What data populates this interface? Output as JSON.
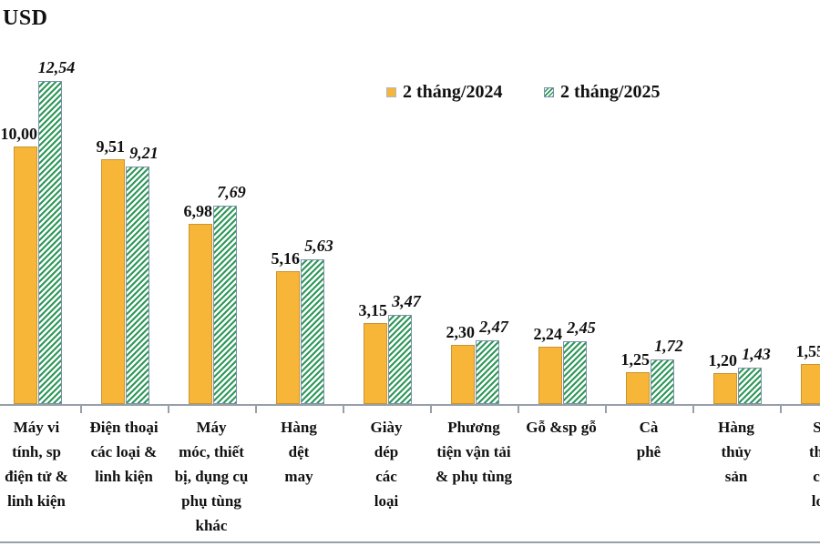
{
  "title": "USD",
  "legend": {
    "items": [
      {
        "label": "2 tháng/2024",
        "swatch": "solid-orange-square"
      },
      {
        "label": "2 tháng/2025",
        "swatch": "green-hatched-square"
      }
    ]
  },
  "colors": {
    "bar_2024_fill": "#F7B637",
    "bar_2024_border": "#C89433",
    "bar_2025_stripe": "#2E9858",
    "bar_2025_border": "#7D90AE",
    "axis": "#97A0A8",
    "text": "#111111",
    "background": "#FFFFFF"
  },
  "chart_data": {
    "type": "bar",
    "title": "USD",
    "ylabel": "USD",
    "xlabel": "",
    "ylim": [
      0,
      14
    ],
    "grid": false,
    "legend_position": "top-center",
    "categories": [
      "Máy vi tính, sp điện tử & linh kiện",
      "Điện thoại các loại & linh kiện",
      "Máy móc, thiết bị, dụng cụ phụ tùng khác",
      "Hàng dệt may",
      "Giày dép các loại",
      "Phương tiện vận tải & phụ tùng",
      "Gỗ &sp gỗ",
      "Cà phê",
      "Hàng thủy sản",
      "Sắt thép các loại"
    ],
    "category_lines": [
      [
        "Máy vi",
        "tính, sp",
        "điện tử &",
        "linh kiện"
      ],
      [
        "Điện thoại",
        "các loại &",
        "linh kiện"
      ],
      [
        "Máy",
        "móc, thiết",
        "bị, dụng cụ",
        "phụ tùng",
        "khác"
      ],
      [
        "Hàng",
        "dệt",
        "may"
      ],
      [
        "Giày",
        "dép",
        "các",
        "loại"
      ],
      [
        "Phương",
        "tiện vận tải",
        "& phụ tùng"
      ],
      [
        "Gỗ &sp gỗ"
      ],
      [
        "Cà",
        "phê"
      ],
      [
        "Hàng",
        "thủy",
        "sản"
      ],
      [
        "Sắt",
        "thép",
        "các",
        "loại"
      ]
    ],
    "series": [
      {
        "name": "2 tháng/2024",
        "values": [
          10.0,
          9.51,
          6.98,
          5.16,
          3.15,
          2.3,
          2.24,
          1.25,
          1.2,
          1.55
        ],
        "display": [
          "10,00",
          "9,51",
          "6,98",
          "5,16",
          "3,15",
          "2,30",
          "2,24",
          "1,25",
          "1,20",
          "1,55"
        ]
      },
      {
        "name": "2 tháng/2025",
        "values": [
          12.54,
          9.21,
          7.69,
          5.63,
          3.47,
          2.47,
          2.45,
          1.72,
          1.43,
          null
        ],
        "display": [
          "12,54",
          "9,21",
          "7,69",
          "5,63",
          "3,47",
          "2,47",
          "2,45",
          "1,72",
          "1,43",
          ""
        ]
      }
    ]
  }
}
